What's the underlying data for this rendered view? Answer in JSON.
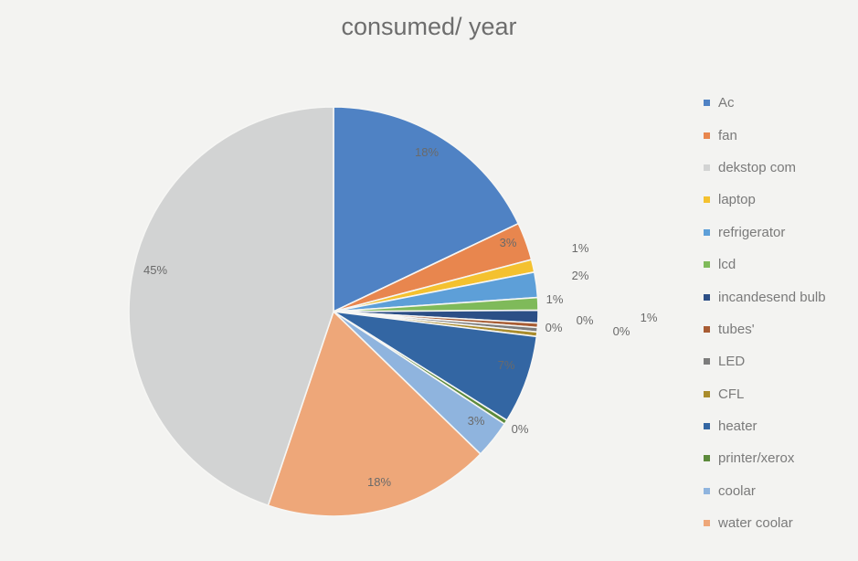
{
  "chart_data": {
    "type": "pie",
    "title": "consumed/ year",
    "categories": [
      "Ac",
      "fan",
      "dekstop com",
      "laptop",
      "refrigerator",
      "lcd",
      "incandesend bulb",
      "tubes'",
      "LED",
      "CFL",
      "heater",
      "printer/xerox",
      "coolar",
      "water coolar"
    ],
    "values": [
      18,
      3,
      45,
      1,
      2,
      1,
      1,
      0,
      0,
      0,
      7,
      0,
      3,
      18
    ],
    "data_labels": [
      "18%",
      "3%",
      "45%",
      "1%",
      "2%",
      "1%",
      "1%",
      "0%",
      "0%",
      "0%",
      "7%",
      "0%",
      "3%",
      "18%"
    ],
    "colors": [
      "#4f82c4",
      "#e8864e",
      "#d2d3d3",
      "#f4c12f",
      "#5d9fd8",
      "#7fba5a",
      "#2c4f86",
      "#a85c33",
      "#7c7c7c",
      "#a98c2c",
      "#3366a3",
      "#5c8a3b",
      "#8fb4de",
      "#eea779"
    ],
    "legend_position": "right",
    "draw_order": [
      0,
      1,
      3,
      4,
      5,
      6,
      7,
      8,
      9,
      10,
      11,
      12,
      13,
      2
    ]
  }
}
